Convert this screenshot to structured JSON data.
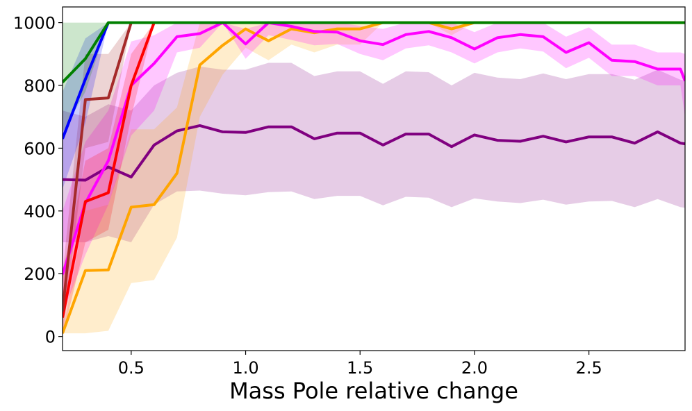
{
  "chart_data": {
    "type": "line",
    "title": "",
    "xlabel": "Mass Pole relative change",
    "ylabel": "",
    "xlim": [
      0.2,
      2.92
    ],
    "ylim": [
      -45,
      1050
    ],
    "xticks": [
      0.5,
      1.0,
      1.5,
      2.0,
      2.5
    ],
    "xtick_labels": [
      "0.5",
      "1.0",
      "1.5",
      "2.0",
      "2.5"
    ],
    "yticks": [
      0,
      200,
      400,
      600,
      800,
      1000
    ],
    "ytick_labels": [
      "0",
      "200",
      "400",
      "600",
      "800",
      "1000"
    ],
    "grid": false,
    "legend": "none",
    "series": [
      {
        "name": "purple",
        "color": "#800080",
        "band_opacity": 0.2,
        "x": [
          0.2,
          0.3,
          0.4,
          0.5,
          0.6,
          0.7,
          0.8,
          0.9,
          1.0,
          1.1,
          1.2,
          1.3,
          1.4,
          1.5,
          1.6,
          1.7,
          1.8,
          1.9,
          2.0,
          2.1,
          2.2,
          2.3,
          2.4,
          2.5,
          2.6,
          2.7,
          2.8,
          2.9,
          2.92
        ],
        "values": [
          500,
          498,
          540,
          508,
          610,
          655,
          672,
          652,
          650,
          668,
          668,
          630,
          648,
          648,
          610,
          645,
          645,
          605,
          642,
          625,
          622,
          638,
          620,
          636,
          636,
          616,
          652,
          616,
          614
        ],
        "lower": [
          300,
          300,
          320,
          300,
          420,
          462,
          465,
          455,
          450,
          460,
          462,
          438,
          448,
          448,
          418,
          445,
          442,
          412,
          440,
          430,
          425,
          436,
          420,
          430,
          432,
          412,
          438,
          412,
          410
        ],
        "upper": [
          720,
          700,
          740,
          720,
          800,
          840,
          860,
          850,
          850,
          872,
          872,
          830,
          845,
          845,
          805,
          845,
          842,
          800,
          840,
          825,
          820,
          838,
          820,
          836,
          836,
          818,
          850,
          818,
          815
        ]
      },
      {
        "name": "orange",
        "color": "#ffa500",
        "band_opacity": 0.2,
        "x": [
          0.2,
          0.3,
          0.4,
          0.5,
          0.6,
          0.7,
          0.8,
          0.9,
          1.0,
          1.1,
          1.2,
          1.3,
          1.4,
          1.5,
          1.6,
          1.7,
          1.8,
          1.9,
          2.0,
          2.1,
          2.2,
          2.3,
          2.4,
          2.5,
          2.6,
          2.7,
          2.8,
          2.9,
          2.92
        ],
        "values": [
          10,
          210,
          212,
          412,
          420,
          520,
          865,
          928,
          980,
          942,
          980,
          968,
          980,
          980,
          1000,
          1000,
          1000,
          980,
          1000,
          1000,
          1000,
          1000,
          1000,
          1000,
          1000,
          1000,
          1000,
          1000,
          1000
        ],
        "lower": [
          10,
          10,
          18,
          170,
          180,
          315,
          700,
          835,
          920,
          880,
          930,
          905,
          930,
          930,
          1000,
          1000,
          1000,
          960,
          1000,
          1000,
          1000,
          1000,
          1000,
          1000,
          1000,
          1000,
          1000,
          1000,
          1000
        ],
        "upper": [
          10,
          400,
          420,
          660,
          660,
          730,
          1000,
          1000,
          1000,
          1000,
          1000,
          1000,
          1000,
          1000,
          1000,
          1000,
          1000,
          1000,
          1000,
          1000,
          1000,
          1000,
          1000,
          1000,
          1000,
          1000,
          1000,
          1000,
          1000
        ]
      },
      {
        "name": "magenta",
        "color": "#ff00ff",
        "band_opacity": 0.22,
        "x": [
          0.2,
          0.3,
          0.4,
          0.5,
          0.6,
          0.7,
          0.8,
          0.9,
          1.0,
          1.1,
          1.2,
          1.3,
          1.4,
          1.5,
          1.6,
          1.7,
          1.8,
          1.9,
          2.0,
          2.1,
          2.2,
          2.3,
          2.4,
          2.5,
          2.6,
          2.7,
          2.8,
          2.9,
          2.92
        ],
        "values": [
          198,
          425,
          560,
          800,
          870,
          955,
          965,
          1000,
          932,
          1000,
          988,
          972,
          970,
          942,
          930,
          962,
          972,
          952,
          916,
          952,
          962,
          955,
          905,
          936,
          880,
          876,
          852,
          852,
          814
        ],
        "lower": [
          70,
          260,
          420,
          640,
          720,
          905,
          920,
          1000,
          885,
          960,
          945,
          928,
          932,
          900,
          880,
          918,
          928,
          905,
          870,
          905,
          918,
          908,
          855,
          888,
          830,
          830,
          800,
          800,
          700
        ],
        "upper": [
          400,
          620,
          720,
          940,
          960,
          1000,
          1000,
          1000,
          980,
          1000,
          1000,
          1000,
          1000,
          990,
          980,
          1000,
          1000,
          1000,
          970,
          1000,
          1000,
          1000,
          955,
          985,
          930,
          930,
          905,
          905,
          900
        ]
      },
      {
        "name": "red",
        "color": "#ff0000",
        "band_opacity": 0.2,
        "x": [
          0.2,
          0.3,
          0.4,
          0.5,
          0.6
        ],
        "values": [
          60,
          430,
          458,
          800,
          1000
        ],
        "lower": [
          0,
          300,
          340,
          700,
          1000
        ],
        "upper": [
          200,
          560,
          600,
          900,
          1000
        ]
      },
      {
        "name": "brown",
        "color": "#a52a2a",
        "band_opacity": 0.2,
        "x": [
          0.2,
          0.3,
          0.4,
          0.5
        ],
        "values": [
          80,
          755,
          760,
          1000
        ],
        "lower": [
          0,
          600,
          620,
          1000
        ],
        "upper": [
          200,
          900,
          900,
          1000
        ]
      },
      {
        "name": "blue",
        "color": "#0000ff",
        "band_opacity": 0.2,
        "x": [
          0.2,
          0.3,
          0.4
        ],
        "values": [
          630,
          820,
          1000
        ],
        "lower": [
          470,
          680,
          1000
        ],
        "upper": [
          780,
          950,
          1000
        ]
      },
      {
        "name": "green",
        "color": "#008000",
        "band_opacity": 0.2,
        "x": [
          0.2,
          0.3,
          0.4,
          0.5,
          0.6,
          0.7,
          0.8,
          0.9,
          1.0,
          1.1,
          1.2,
          1.3,
          1.4,
          1.5,
          1.6,
          1.7,
          1.8,
          1.9,
          2.0,
          2.1,
          2.2,
          2.3,
          2.4,
          2.5,
          2.6,
          2.7,
          2.8,
          2.9,
          2.92
        ],
        "values": [
          810,
          885,
          1000,
          1000,
          1000,
          1000,
          1000,
          1000,
          1000,
          1000,
          1000,
          1000,
          1000,
          1000,
          1000,
          1000,
          1000,
          1000,
          1000,
          1000,
          1000,
          1000,
          1000,
          1000,
          1000,
          1000,
          1000,
          1000,
          1000
        ],
        "lower": [
          650,
          780,
          1000,
          1000,
          1000,
          1000,
          1000,
          1000,
          1000,
          1000,
          1000,
          1000,
          1000,
          1000,
          1000,
          1000,
          1000,
          1000,
          1000,
          1000,
          1000,
          1000,
          1000,
          1000,
          1000,
          1000,
          1000,
          1000,
          1000
        ],
        "upper": [
          1000,
          1000,
          1000,
          1000,
          1000,
          1000,
          1000,
          1000,
          1000,
          1000,
          1000,
          1000,
          1000,
          1000,
          1000,
          1000,
          1000,
          1000,
          1000,
          1000,
          1000,
          1000,
          1000,
          1000,
          1000,
          1000,
          1000,
          1000,
          1000
        ]
      }
    ]
  }
}
